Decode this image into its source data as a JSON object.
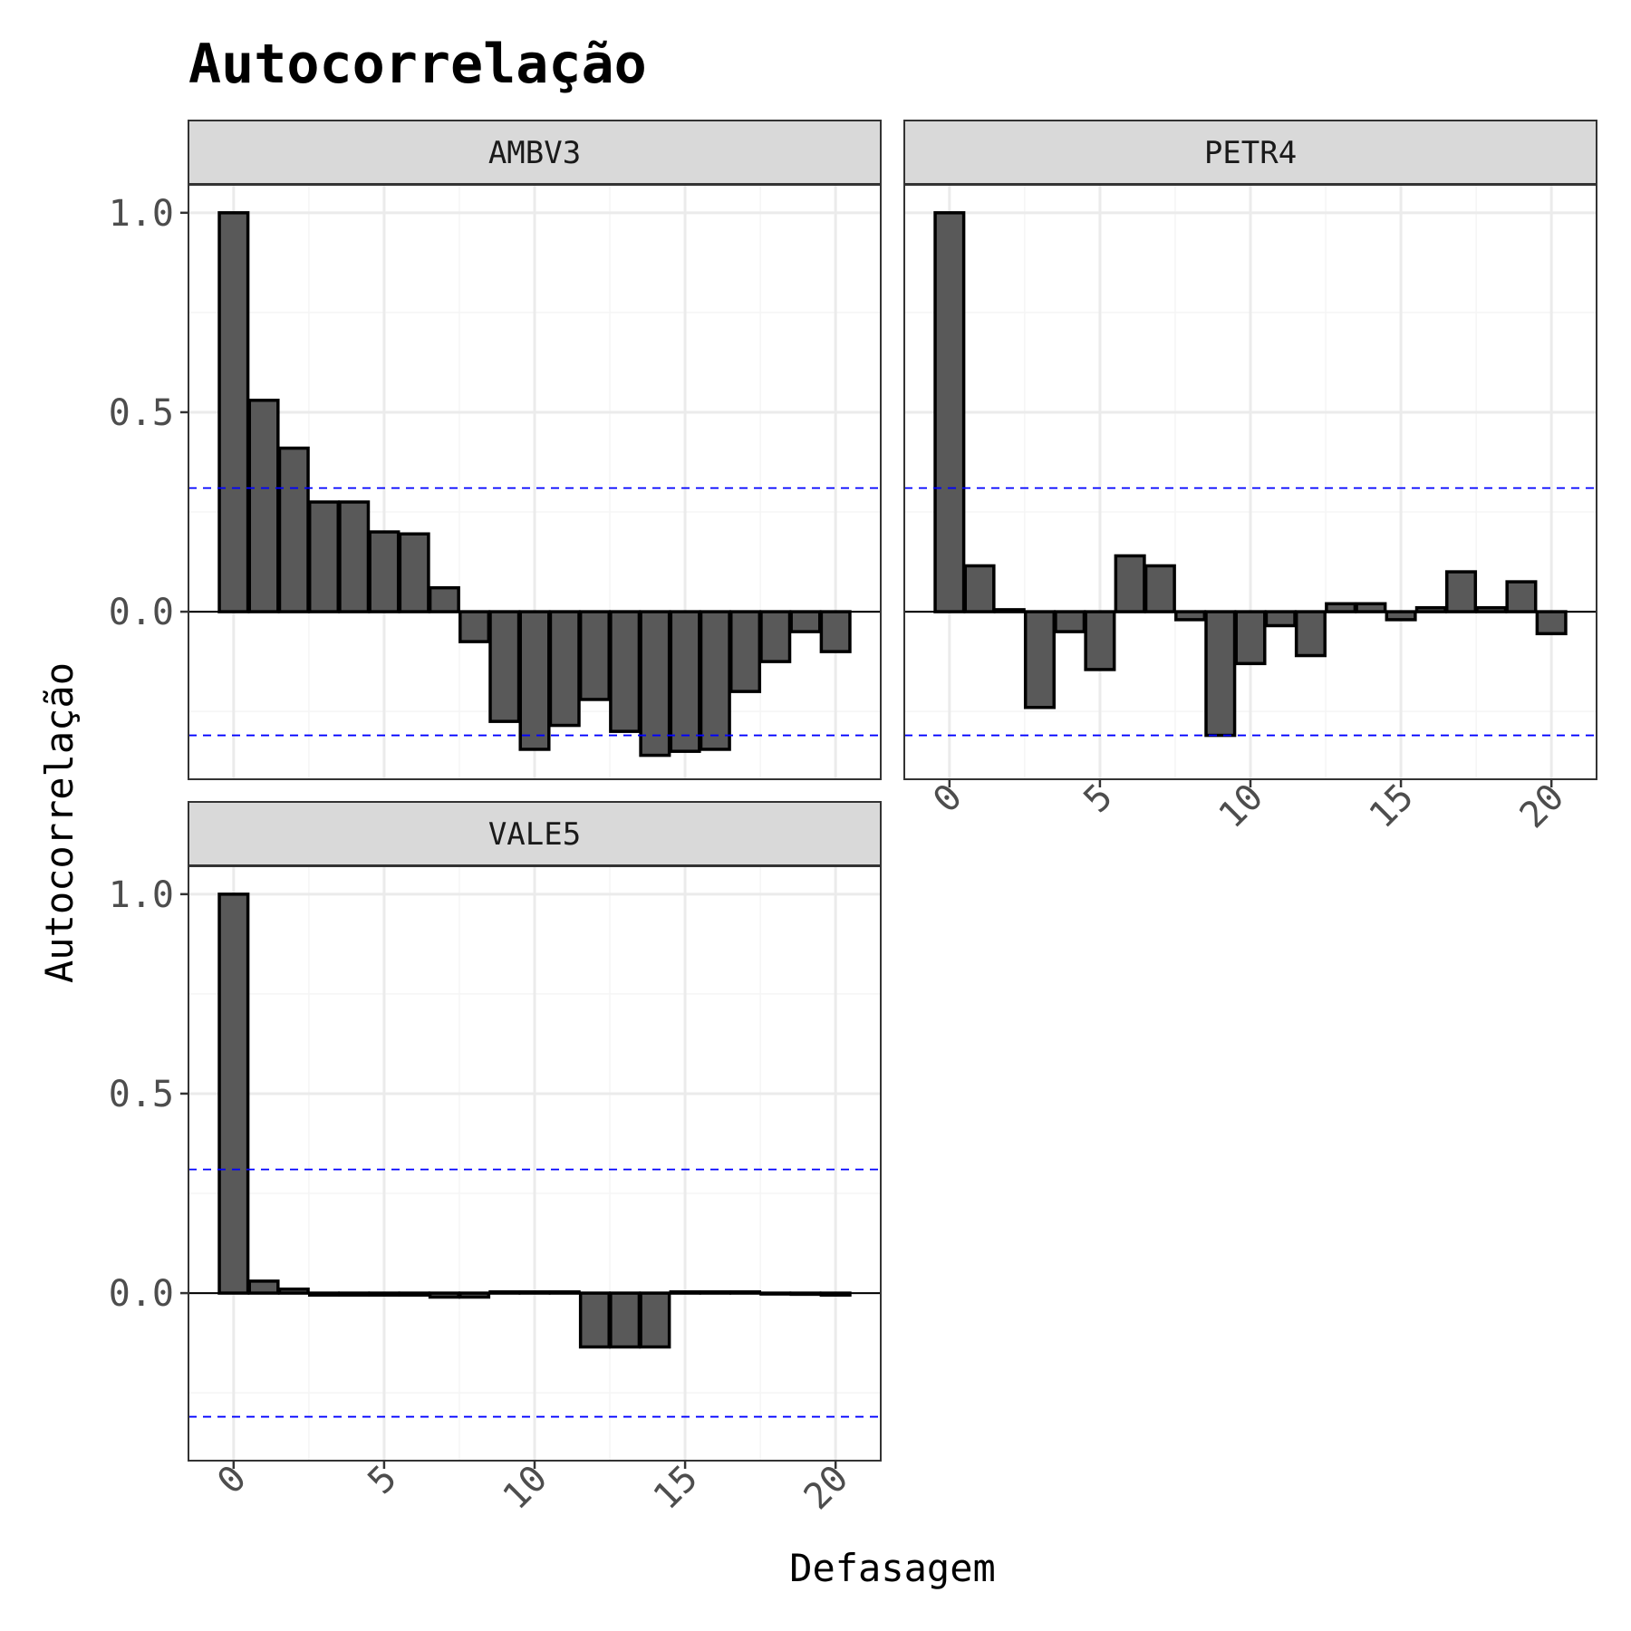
{
  "chart_data": {
    "type": "bar",
    "title": "Autocorrelação",
    "xlabel": "Defasagem",
    "ylabel": "Autocorrelação",
    "x_ticks": [
      0,
      5,
      10,
      15,
      20
    ],
    "y_ticks": [
      0.0,
      0.5,
      1.0
    ],
    "y_tick_labels": [
      "0.0",
      "0.5",
      "1.0"
    ],
    "xlim": [
      -1.5,
      21.5
    ],
    "ylim": [
      -0.42,
      1.07
    ],
    "confidence_bound": 0.31,
    "grid": true,
    "colors": {
      "bar_fill": "#595959",
      "bar_stroke": "#000000",
      "confidence_line": "#0000ff",
      "strip_fill": "#d9d9d9",
      "grid_major": "#ebebeb",
      "grid_minor": "#f5f5f5",
      "panel_border": "#333333"
    },
    "panels": [
      {
        "name": "AMBV3",
        "lags": [
          0,
          1,
          2,
          3,
          4,
          5,
          6,
          7,
          8,
          9,
          10,
          11,
          12,
          13,
          14,
          15,
          16,
          17,
          18,
          19,
          20
        ],
        "values": [
          1.0,
          0.53,
          0.41,
          0.275,
          0.275,
          0.2,
          0.195,
          0.06,
          -0.075,
          -0.275,
          -0.345,
          -0.285,
          -0.22,
          -0.3,
          -0.36,
          -0.35,
          -0.345,
          -0.2,
          -0.125,
          -0.05,
          -0.1
        ]
      },
      {
        "name": "PETR4",
        "lags": [
          0,
          1,
          2,
          3,
          4,
          5,
          6,
          7,
          8,
          9,
          10,
          11,
          12,
          13,
          14,
          15,
          16,
          17,
          18,
          19,
          20
        ],
        "values": [
          1.0,
          0.115,
          0.005,
          -0.24,
          -0.05,
          -0.145,
          0.14,
          0.115,
          -0.02,
          -0.31,
          -0.13,
          -0.035,
          -0.11,
          0.02,
          0.02,
          -0.02,
          0.01,
          0.1,
          0.01,
          0.075,
          -0.055
        ]
      },
      {
        "name": "VALE5",
        "lags": [
          0,
          1,
          2,
          3,
          4,
          5,
          6,
          7,
          8,
          9,
          10,
          11,
          12,
          13,
          14,
          15,
          16,
          17,
          18,
          19,
          20
        ],
        "values": [
          1.0,
          0.03,
          0.01,
          -0.005,
          -0.005,
          -0.005,
          -0.005,
          -0.01,
          -0.01,
          0.003,
          0.003,
          0.003,
          -0.135,
          -0.135,
          -0.135,
          0.003,
          0.003,
          0.003,
          -0.002,
          -0.003,
          -0.005
        ]
      }
    ]
  }
}
